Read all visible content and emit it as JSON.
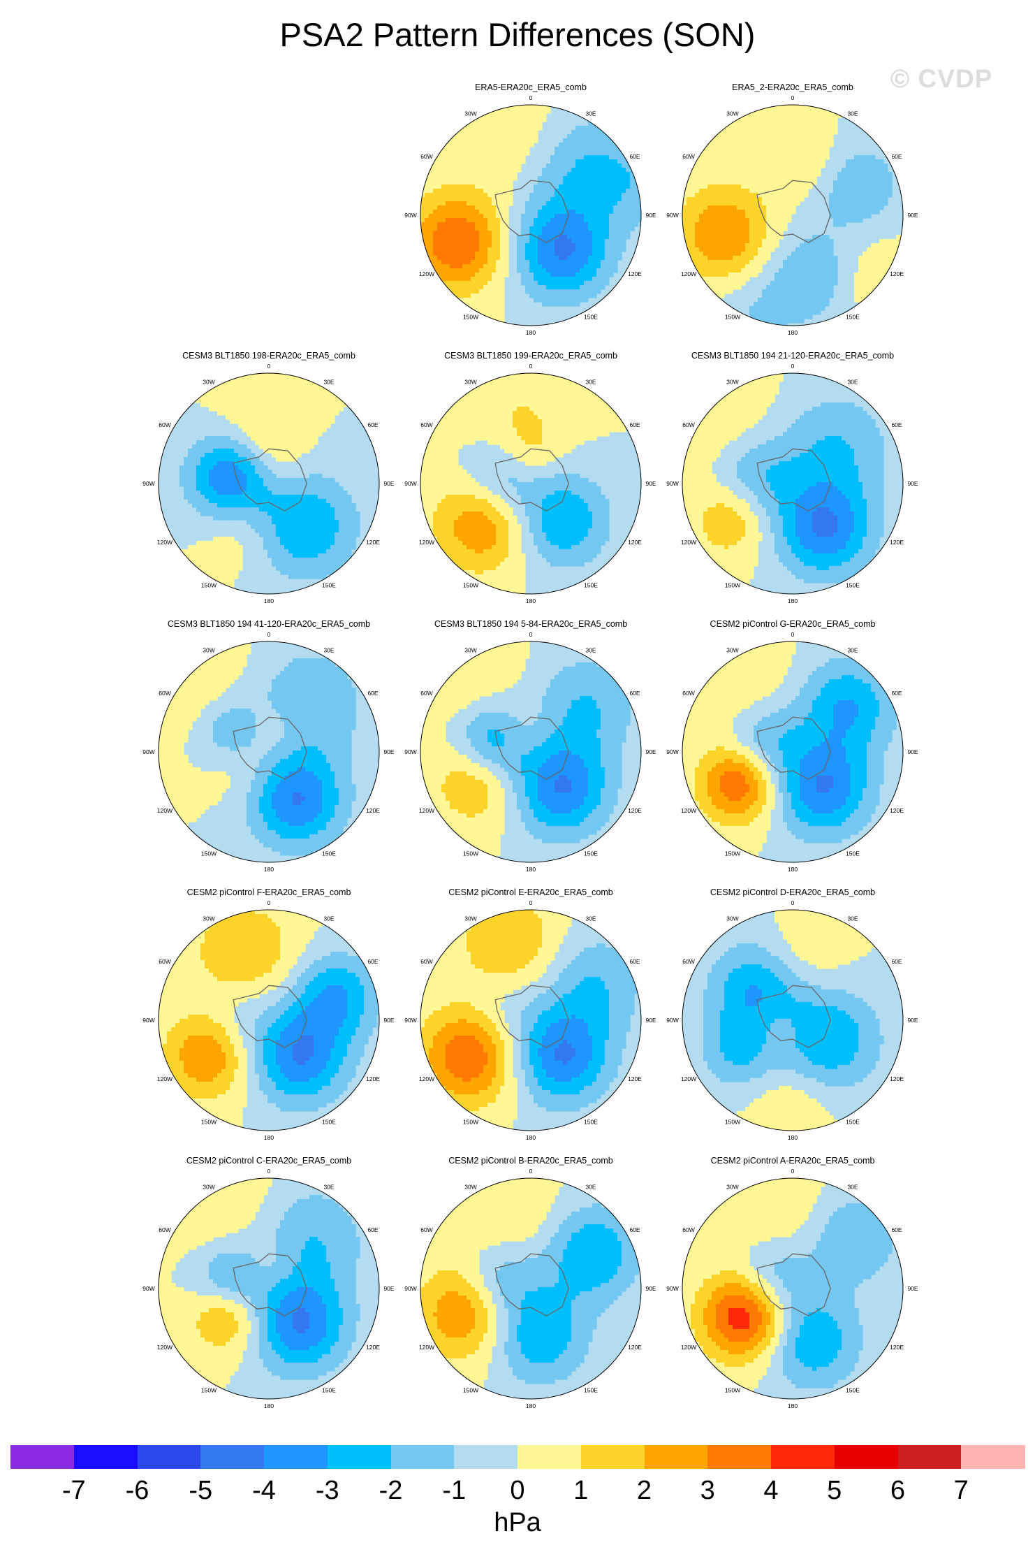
{
  "title": "PSA2 Pattern Differences (SON)",
  "watermark": "© CVDP",
  "longitude_labels": [
    "0",
    "30E",
    "60E",
    "90E",
    "120E",
    "150E",
    "180",
    "150W",
    "120W",
    "90W",
    "60W",
    "30W"
  ],
  "colorbar": {
    "units": "hPa",
    "levels": [
      "-7",
      "-6",
      "-5",
      "-4",
      "-3",
      "-2",
      "-1",
      "0",
      "1",
      "2",
      "3",
      "4",
      "5",
      "6",
      "7"
    ],
    "colors": [
      "#8a2be2",
      "#1a0dff",
      "#2a48ec",
      "#3378ee",
      "#1e96ff",
      "#00bfff",
      "#74c7f0",
      "#b3dcf1",
      "#fff694",
      "#ffd42a",
      "#ffa500",
      "#ff7a00",
      "#ff2a0a",
      "#e60000",
      "#cc1f1f",
      "#ffb3b3"
    ]
  },
  "panels": [
    {
      "title": "ERA5-ERA20c_ERA5_comb",
      "row": 0,
      "col": 1,
      "blobs": [
        [
          -40,
          -110,
          4,
          1.0
        ],
        [
          -60,
          140,
          -4,
          1.0
        ],
        [
          -35,
          -15,
          1,
          1.1
        ],
        [
          -45,
          50,
          -2,
          1.2
        ],
        [
          -15,
          75,
          -1,
          1.0
        ]
      ]
    },
    {
      "title": "ERA5_2-ERA20c_ERA5_comb",
      "row": 0,
      "col": 2,
      "blobs": [
        [
          -45,
          -105,
          3,
          1.0
        ],
        [
          -50,
          160,
          -2,
          1.0
        ],
        [
          -55,
          20,
          1,
          0.8
        ],
        [
          -30,
          130,
          1,
          0.9
        ],
        [
          -25,
          -160,
          -1,
          0.9
        ],
        [
          -45,
          65,
          -2,
          0.9
        ]
      ]
    },
    {
      "title": "CESM3 BLT1850 198-ERA20c_ERA5_comb",
      "row": 1,
      "col": 0,
      "blobs": [
        [
          -65,
          -80,
          -4,
          0.9
        ],
        [
          -55,
          -15,
          1,
          0.9
        ],
        [
          -55,
          -150,
          1,
          0.8
        ],
        [
          -55,
          140,
          -3,
          1.1
        ],
        [
          -75,
          10,
          1,
          0.7
        ]
      ]
    },
    {
      "title": "CESM3 BLT1850 199-ERA20c_ERA5_comb",
      "row": 1,
      "col": 1,
      "blobs": [
        [
          -50,
          -130,
          3,
          1.0
        ],
        [
          -60,
          140,
          -3,
          1.0
        ],
        [
          -45,
          -10,
          1,
          1.1
        ],
        [
          -70,
          -80,
          -2,
          0.8
        ],
        [
          -70,
          0,
          1,
          0.6
        ]
      ]
    },
    {
      "title": "CESM3 BLT1850 194 21-120-ERA20c_ERA5_comb",
      "row": 1,
      "col": 2,
      "blobs": [
        [
          -45,
          -120,
          2,
          0.8
        ],
        [
          -55,
          145,
          -4,
          1.0
        ],
        [
          -25,
          -50,
          1,
          1.3
        ],
        [
          -55,
          50,
          -2,
          1.2
        ],
        [
          -65,
          -80,
          -2,
          0.9
        ]
      ]
    },
    {
      "title": "CESM3 BLT1850 194 41-120-ERA20c_ERA5_comb",
      "row": 2,
      "col": 0,
      "blobs": [
        [
          -70,
          -100,
          2,
          0.8
        ],
        [
          -55,
          150,
          -4,
          1.0
        ],
        [
          -25,
          -50,
          1,
          1.3
        ],
        [
          -65,
          -70,
          -3,
          0.8
        ],
        [
          -50,
          40,
          -2,
          1.2
        ],
        [
          -75,
          10,
          1,
          0.6
        ]
      ]
    },
    {
      "title": "CESM3 BLT1850 194 5-84-ERA20c_ERA5_comb",
      "row": 2,
      "col": 1,
      "blobs": [
        [
          -50,
          -120,
          2,
          0.9
        ],
        [
          -60,
          140,
          -4,
          1.0
        ],
        [
          -30,
          -40,
          1,
          1.1
        ],
        [
          -65,
          -70,
          -3,
          0.8
        ],
        [
          -45,
          50,
          -2,
          1.1
        ],
        [
          -75,
          -20,
          1,
          0.6
        ]
      ]
    },
    {
      "title": "CESM2 piControl G-ERA20c_ERA5_comb",
      "row": 2,
      "col": 2,
      "blobs": [
        [
          -50,
          -120,
          4,
          0.8
        ],
        [
          -60,
          140,
          -4,
          1.0
        ],
        [
          -30,
          -40,
          1,
          1.2
        ],
        [
          -45,
          50,
          -3,
          1.0
        ],
        [
          -70,
          -70,
          -2,
          0.8
        ]
      ]
    },
    {
      "title": "CESM2 piControl F-ERA20c_ERA5_comb",
      "row": 3,
      "col": 0,
      "blobs": [
        [
          -45,
          -120,
          3,
          0.9
        ],
        [
          -60,
          140,
          -4,
          1.0
        ],
        [
          -45,
          -20,
          2,
          1.1
        ],
        [
          -45,
          70,
          -3,
          0.9
        ],
        [
          -70,
          -80,
          -1,
          0.8
        ]
      ]
    },
    {
      "title": "CESM2 piControl E-ERA20c_ERA5_comb",
      "row": 3,
      "col": 1,
      "blobs": [
        [
          -45,
          -120,
          4,
          1.0
        ],
        [
          -60,
          140,
          -4,
          1.0
        ],
        [
          -40,
          -15,
          2,
          1.1
        ],
        [
          -45,
          60,
          -2,
          1.1
        ],
        [
          -70,
          -70,
          -1,
          0.8
        ]
      ]
    },
    {
      "title": "CESM2 piControl D-ERA20c_ERA5_comb",
      "row": 3,
      "col": 2,
      "blobs": [
        [
          -60,
          -50,
          -3,
          1.0
        ],
        [
          -65,
          120,
          -3,
          1.1
        ],
        [
          -50,
          10,
          1,
          0.9
        ],
        [
          -40,
          180,
          1,
          0.9
        ],
        [
          -80,
          -120,
          1,
          0.6
        ],
        [
          -50,
          -120,
          -2,
          0.8
        ]
      ]
    },
    {
      "title": "CESM2 piControl C-ERA20c_ERA5_comb",
      "row": 4,
      "col": 0,
      "blobs": [
        [
          -60,
          -120,
          3,
          0.8
        ],
        [
          -60,
          140,
          -4,
          1.0
        ],
        [
          -30,
          -30,
          1,
          1.3
        ],
        [
          -65,
          -80,
          -3,
          0.8
        ],
        [
          -50,
          40,
          -2,
          1.2
        ],
        [
          -75,
          0,
          1,
          0.6
        ]
      ]
    },
    {
      "title": "CESM2 piControl B-ERA20c_ERA5_comb",
      "row": 4,
      "col": 1,
      "blobs": [
        [
          -45,
          -110,
          3,
          1.0
        ],
        [
          -60,
          170,
          -3,
          1.0
        ],
        [
          -45,
          -15,
          1,
          1.1
        ],
        [
          -45,
          60,
          -3,
          1.0
        ],
        [
          -70,
          -70,
          -2,
          0.8
        ]
      ]
    },
    {
      "title": "CESM2 piControl A-ERA20c_ERA5_comb",
      "row": 4,
      "col": 2,
      "blobs": [
        [
          -55,
          -120,
          5,
          0.9
        ],
        [
          -55,
          160,
          -3,
          1.0
        ],
        [
          -40,
          -10,
          1,
          1.1
        ],
        [
          -40,
          50,
          -2,
          1.0
        ],
        [
          -75,
          -60,
          -2,
          0.8
        ]
      ]
    }
  ]
}
